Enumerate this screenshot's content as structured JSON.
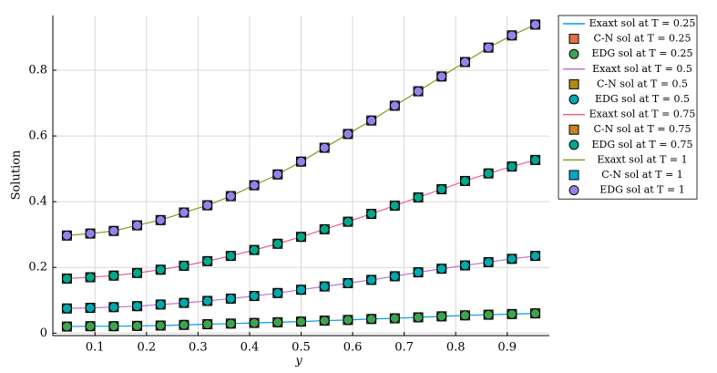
{
  "chart_data": {
    "type": "line",
    "x_label": "y",
    "y_label": "Solution",
    "x": [
      0.0455,
      0.0909,
      0.1364,
      0.1818,
      0.2273,
      0.2727,
      0.3182,
      0.3636,
      0.4091,
      0.4545,
      0.5,
      0.5455,
      0.5909,
      0.6364,
      0.6818,
      0.7273,
      0.7727,
      0.8182,
      0.8636,
      0.9091,
      0.9545
    ],
    "xlim": [
      0.0182,
      0.9818
    ],
    "xticks": [
      0.1,
      0.2,
      0.3,
      0.4,
      0.5,
      0.6,
      0.7,
      0.8,
      0.9
    ],
    "ylim": [
      -0.0076,
      0.9666
    ],
    "yticks": [
      0,
      0.2,
      0.4,
      0.6,
      0.8
    ],
    "grid": true,
    "legend": "outside-right",
    "series": [
      {
        "name": "Exaxt sol at T = 0.25",
        "marker": "line",
        "color": "#009af9",
        "values": [
          0.02,
          0.021,
          0.021,
          0.022,
          0.023,
          0.025,
          0.027,
          0.029,
          0.031,
          0.033,
          0.035,
          0.038,
          0.04,
          0.043,
          0.045,
          0.048,
          0.051,
          0.054,
          0.056,
          0.058,
          0.06
        ]
      },
      {
        "name": "C-N sol at T = 0.25",
        "marker": "square",
        "color": "#e26f46",
        "values": [
          0.02,
          0.021,
          0.021,
          0.022,
          0.023,
          0.025,
          0.027,
          0.029,
          0.031,
          0.033,
          0.035,
          0.038,
          0.04,
          0.043,
          0.045,
          0.048,
          0.051,
          0.054,
          0.056,
          0.058,
          0.06
        ]
      },
      {
        "name": "EDG sol at T = 0.25",
        "marker": "circle",
        "color": "#3da44d",
        "values": [
          0.02,
          0.021,
          0.021,
          0.022,
          0.023,
          0.025,
          0.027,
          0.029,
          0.031,
          0.033,
          0.035,
          0.038,
          0.04,
          0.043,
          0.045,
          0.048,
          0.051,
          0.054,
          0.056,
          0.058,
          0.06
        ]
      },
      {
        "name": "Exaxt sol at T = 0.5",
        "marker": "line",
        "color": "#c271d2",
        "values": [
          0.075,
          0.077,
          0.079,
          0.082,
          0.087,
          0.092,
          0.098,
          0.105,
          0.113,
          0.122,
          0.132,
          0.142,
          0.152,
          0.162,
          0.173,
          0.185,
          0.196,
          0.206,
          0.216,
          0.226,
          0.235
        ]
      },
      {
        "name": "C-N sol at T = 0.5",
        "marker": "square",
        "color": "#ac8d18",
        "values": [
          0.075,
          0.077,
          0.079,
          0.082,
          0.087,
          0.092,
          0.098,
          0.105,
          0.113,
          0.122,
          0.132,
          0.142,
          0.152,
          0.162,
          0.173,
          0.185,
          0.196,
          0.206,
          0.216,
          0.226,
          0.235
        ]
      },
      {
        "name": "EDG sol at T = 0.5",
        "marker": "circle",
        "color": "#00a9ad",
        "values": [
          0.075,
          0.077,
          0.079,
          0.082,
          0.087,
          0.092,
          0.098,
          0.105,
          0.113,
          0.122,
          0.132,
          0.142,
          0.152,
          0.162,
          0.173,
          0.185,
          0.196,
          0.206,
          0.216,
          0.226,
          0.235
        ]
      },
      {
        "name": "Exaxt sol at T = 0.75",
        "marker": "line",
        "color": "#ed5d92",
        "values": [
          0.166,
          0.17,
          0.175,
          0.183,
          0.193,
          0.205,
          0.219,
          0.235,
          0.253,
          0.272,
          0.293,
          0.316,
          0.339,
          0.363,
          0.388,
          0.413,
          0.438,
          0.463,
          0.486,
          0.507,
          0.527
        ]
      },
      {
        "name": "C-N sol at T = 0.75",
        "marker": "square",
        "color": "#c68225",
        "values": [
          0.166,
          0.17,
          0.175,
          0.183,
          0.193,
          0.205,
          0.219,
          0.235,
          0.253,
          0.272,
          0.293,
          0.316,
          0.339,
          0.363,
          0.388,
          0.413,
          0.438,
          0.463,
          0.486,
          0.507,
          0.527
        ]
      },
      {
        "name": "EDG sol at T = 0.75",
        "marker": "circle",
        "color": "#00a98d",
        "values": [
          0.166,
          0.17,
          0.175,
          0.183,
          0.193,
          0.205,
          0.219,
          0.235,
          0.253,
          0.272,
          0.293,
          0.316,
          0.339,
          0.363,
          0.388,
          0.413,
          0.438,
          0.463,
          0.486,
          0.507,
          0.527
        ]
      },
      {
        "name": "Exaxt sol at T = 1",
        "marker": "line",
        "color": "#8e971e",
        "values": [
          0.297,
          0.303,
          0.311,
          0.328,
          0.344,
          0.367,
          0.389,
          0.417,
          0.45,
          0.483,
          0.522,
          0.564,
          0.606,
          0.647,
          0.692,
          0.736,
          0.781,
          0.825,
          0.869,
          0.906,
          0.939
        ]
      },
      {
        "name": "C-N sol at T = 1",
        "marker": "square",
        "color": "#00a8cb",
        "values": [
          0.297,
          0.303,
          0.311,
          0.328,
          0.344,
          0.367,
          0.389,
          0.417,
          0.45,
          0.483,
          0.522,
          0.564,
          0.606,
          0.647,
          0.692,
          0.736,
          0.781,
          0.825,
          0.869,
          0.906,
          0.939
        ]
      },
      {
        "name": "EDG sol at T = 1",
        "marker": "circle",
        "color": "#9b7fe9",
        "values": [
          0.297,
          0.303,
          0.311,
          0.328,
          0.344,
          0.367,
          0.389,
          0.417,
          0.45,
          0.483,
          0.522,
          0.564,
          0.606,
          0.647,
          0.692,
          0.736,
          0.781,
          0.825,
          0.869,
          0.906,
          0.939
        ]
      }
    ]
  }
}
